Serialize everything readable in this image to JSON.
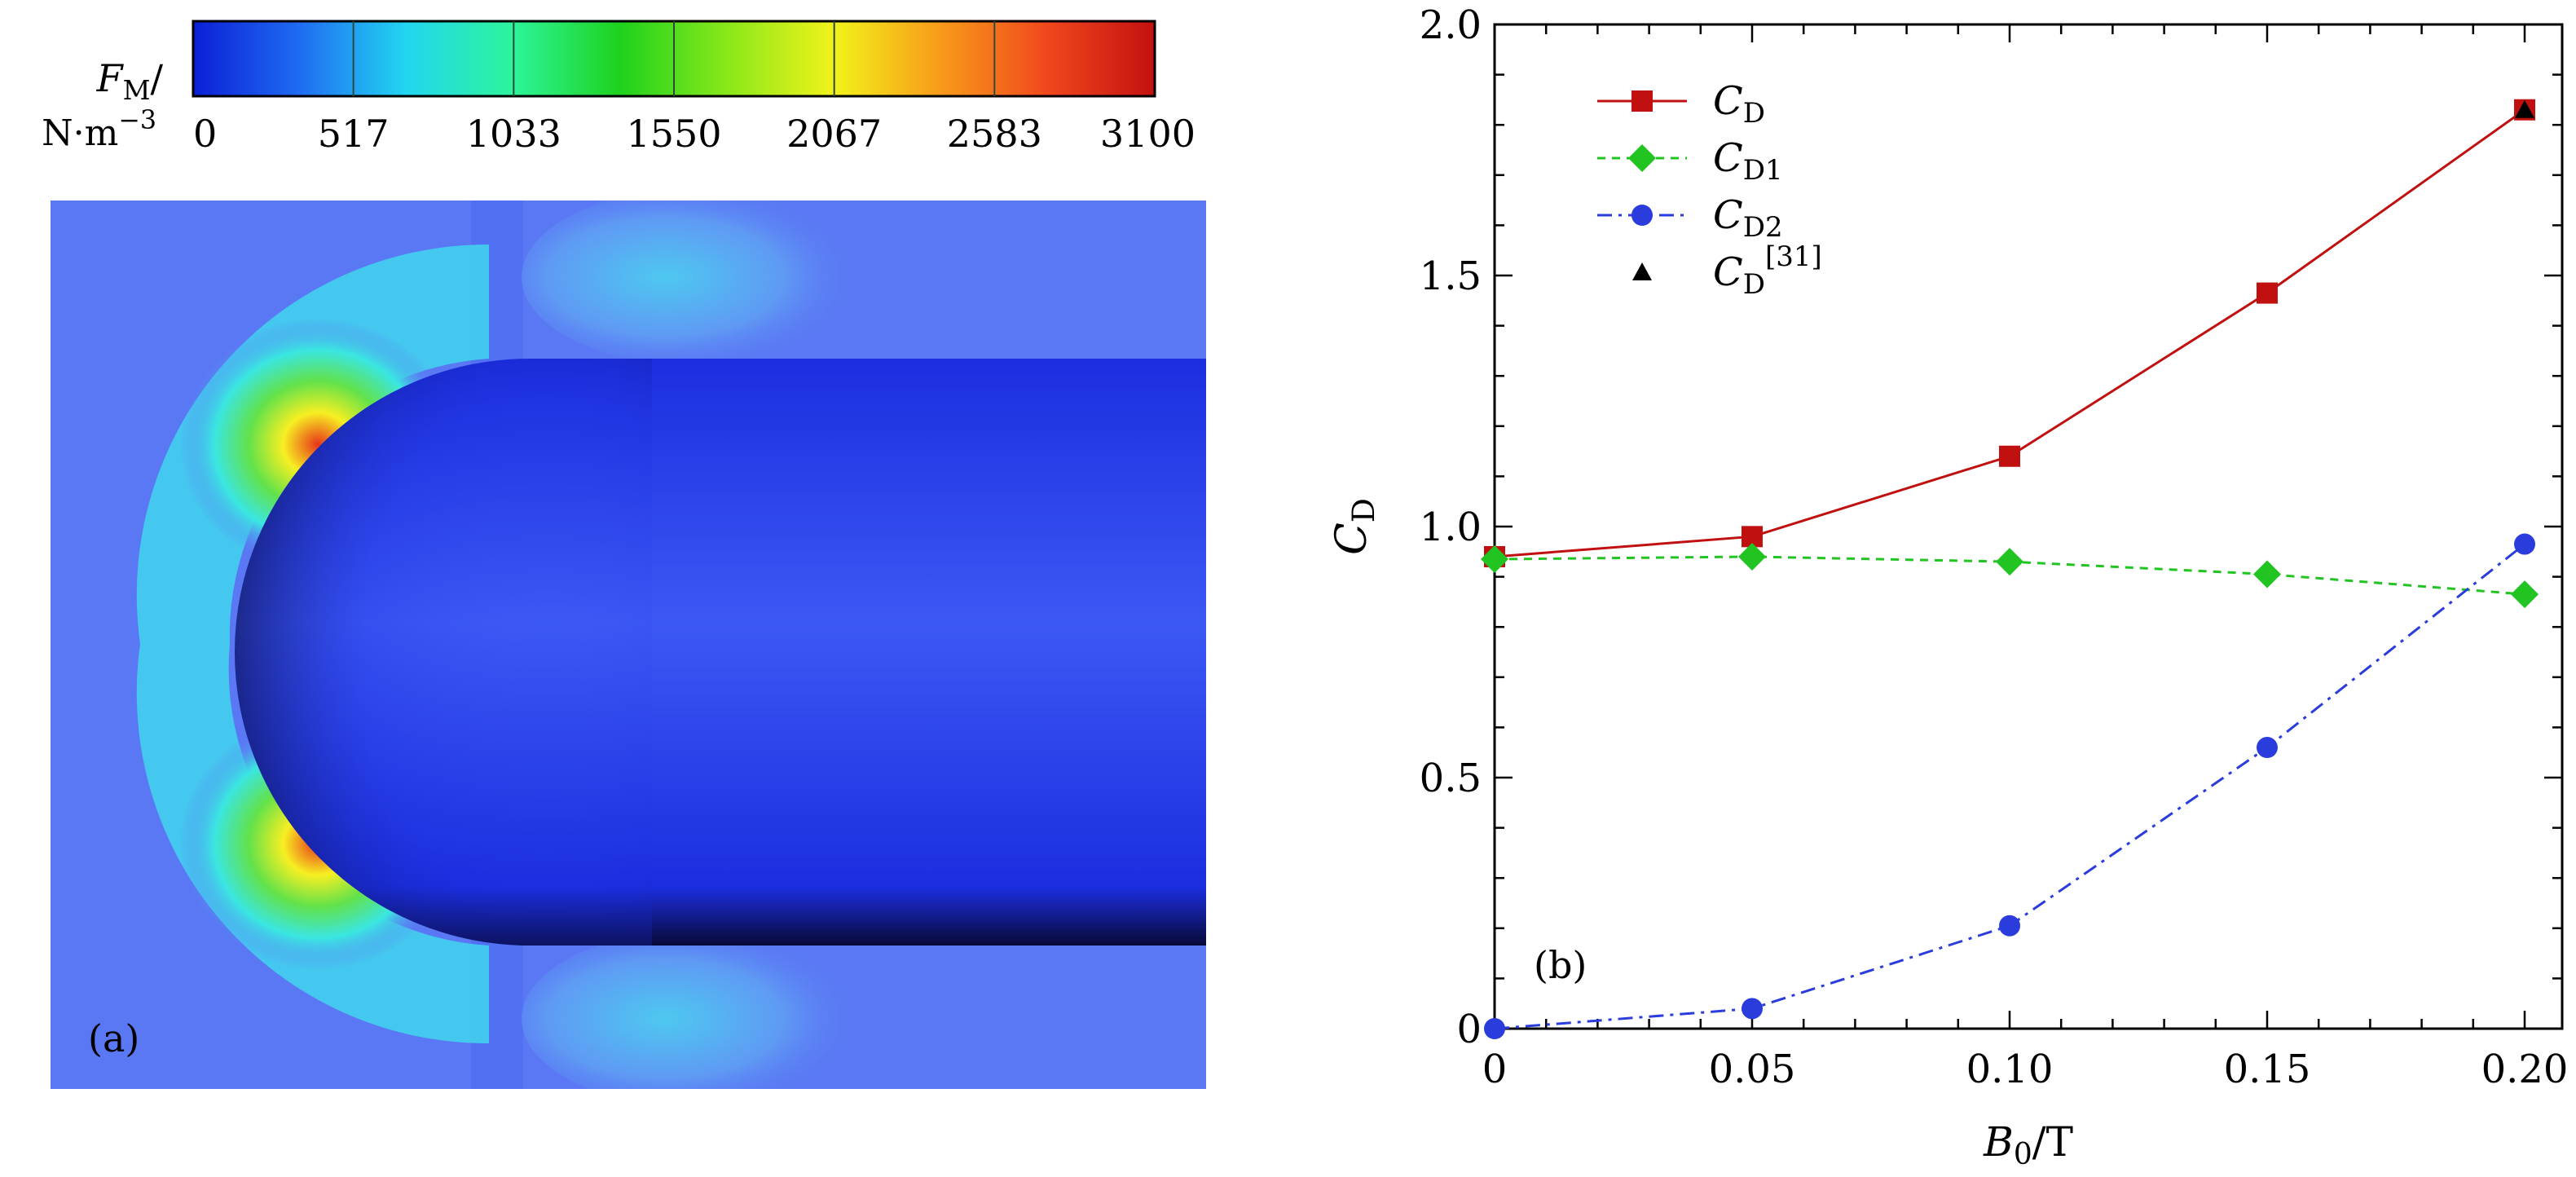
{
  "panel_a": {
    "label": "(a)",
    "colorbar": {
      "label_symbol": "F",
      "label_subscript": "M",
      "label_slash": "/",
      "label_unit": "N·m",
      "label_unit_exp": "−3",
      "ticks": [
        "0",
        "517",
        "1033",
        "1550",
        "2067",
        "2583",
        "3100"
      ],
      "colors": [
        "#0b1fd6",
        "#1f6cf2",
        "#22d6f0",
        "#2cf59a",
        "#1ed21e",
        "#8ae81a",
        "#f2f21a",
        "#f89a1a",
        "#f0471c",
        "#c41010"
      ]
    },
    "field_colors": {
      "background": "#5a78f4",
      "body_dark": "#080a38",
      "body_mid": "#1b2ee0",
      "body_light": "#3c58f4"
    }
  },
  "chart_data": {
    "type": "line",
    "panel_label": "(b)",
    "x": [
      0,
      0.05,
      0.1,
      0.15,
      0.2
    ],
    "xticks": [
      "0",
      "0.05",
      "0.10",
      "0.15",
      "0.20"
    ],
    "yticks": [
      "0",
      "0.5",
      "1.0",
      "1.5",
      "2.0"
    ],
    "xlim": [
      0,
      0.2
    ],
    "ylim": [
      0,
      2.0
    ],
    "xlabel": {
      "sym": "B",
      "sub": "0",
      "rest": "/T"
    },
    "ylabel": {
      "sym": "C",
      "sub": "D"
    },
    "legend_position": "top-left",
    "series": [
      {
        "name": "CD",
        "sym": "C",
        "sub": "D",
        "sup": "",
        "color": "#c01010",
        "marker": "square",
        "dash": "",
        "values": [
          0.94,
          0.98,
          1.14,
          1.465,
          1.83
        ]
      },
      {
        "name": "CD1",
        "sym": "C",
        "sub": "D1",
        "sup": "",
        "color": "#22c422",
        "marker": "diamond",
        "dash": "10,8",
        "values": [
          0.935,
          0.94,
          0.93,
          0.905,
          0.865
        ]
      },
      {
        "name": "CD2",
        "sym": "C",
        "sub": "D2",
        "sup": "",
        "color": "#2a3cdc",
        "marker": "circle",
        "dash": "18,8,4,8",
        "values": [
          0.0,
          0.04,
          0.205,
          0.56,
          0.965
        ]
      },
      {
        "name": "CD[31]",
        "sym": "C",
        "sub": "D",
        "sup": "[31]",
        "color": "#000000",
        "marker": "triangle",
        "dash": "none",
        "points": [
          [
            0.2,
            1.83
          ]
        ]
      }
    ]
  }
}
